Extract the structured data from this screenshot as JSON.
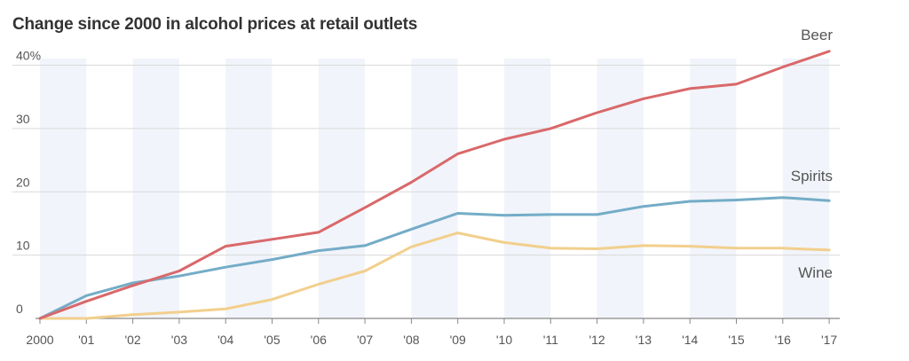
{
  "chart_data": {
    "type": "line",
    "title": "Change since 2000 in alcohol prices at retail outlets",
    "x": [
      "2000",
      "'01",
      "'02",
      "'03",
      "'04",
      "'05",
      "'06",
      "'07",
      "'08",
      "'09",
      "'10",
      "'11",
      "'12",
      "'13",
      "'14",
      "'15",
      "'16",
      "'17"
    ],
    "y_ticks": [
      {
        "value": 0,
        "label": "0"
      },
      {
        "value": 10,
        "label": "10"
      },
      {
        "value": 20,
        "label": "20"
      },
      {
        "value": 30,
        "label": "30"
      },
      {
        "value": 40,
        "label": "40%"
      }
    ],
    "ylim": [
      0,
      40
    ],
    "grid": true,
    "series": [
      {
        "name": "Beer",
        "color": "#d9686a",
        "values": [
          0,
          2.7,
          5.2,
          7.5,
          11.4,
          12.5,
          13.6,
          17.5,
          21.5,
          26,
          28.3,
          30,
          32.5,
          34.7,
          36.3,
          37,
          39.7,
          42.2
        ]
      },
      {
        "name": "Spirits",
        "color": "#74acc7",
        "values": [
          0,
          3.6,
          5.6,
          6.7,
          8.1,
          9.3,
          10.7,
          11.5,
          14.1,
          16.6,
          16.3,
          16.4,
          16.4,
          17.7,
          18.5,
          18.7,
          19.1,
          18.6
        ]
      },
      {
        "name": "Wine",
        "color": "#f2cf8d",
        "values": [
          0,
          0,
          0.6,
          1,
          1.5,
          3,
          5.4,
          7.5,
          11.3,
          13.5,
          12,
          11.1,
          11,
          11.5,
          11.4,
          11.1,
          11.1,
          10.8
        ]
      }
    ]
  }
}
